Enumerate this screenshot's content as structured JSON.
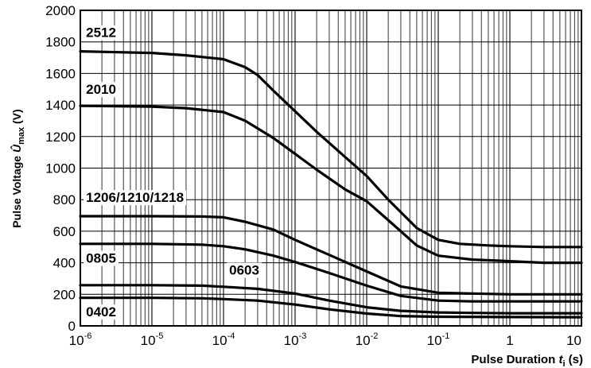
{
  "chart_data": {
    "type": "line",
    "x_scale": "log",
    "xlim": [
      1e-06,
      10
    ],
    "ylim": [
      0,
      2000
    ],
    "grid": true,
    "y_ticks": [
      0,
      200,
      400,
      600,
      800,
      1000,
      1200,
      1400,
      1600,
      1800,
      2000
    ],
    "x_tick_labels": [
      {
        "value": 1e-06,
        "base": "10",
        "exp": "-6"
      },
      {
        "value": 1e-05,
        "base": "10",
        "exp": "-5"
      },
      {
        "value": 0.0001,
        "base": "10",
        "exp": "-4"
      },
      {
        "value": 0.001,
        "base": "10",
        "exp": "-3"
      },
      {
        "value": 0.01,
        "base": "10",
        "exp": "-2"
      },
      {
        "value": 0.1,
        "base": "10",
        "exp": "-1"
      },
      {
        "value": 1,
        "base": "1",
        "exp": ""
      },
      {
        "value": 10,
        "base": "10",
        "exp": ""
      }
    ],
    "ylabel": {
      "main": "Pulse Voltage ",
      "symbol": "Û",
      "sub": "max",
      "unit": " (V)"
    },
    "xlabel": {
      "main": "Pulse Duration ",
      "symbol": "t",
      "sub": "i",
      "unit": " (s)"
    },
    "series": [
      {
        "name": "2512",
        "label_at": [
          1.2e-06,
          1830
        ],
        "points": [
          [
            1e-06,
            1740
          ],
          [
            1e-05,
            1730
          ],
          [
            3e-05,
            1715
          ],
          [
            0.0001,
            1690
          ],
          [
            0.0002,
            1640
          ],
          [
            0.0003,
            1590
          ],
          [
            0.0005,
            1490
          ],
          [
            0.001,
            1360
          ],
          [
            0.002,
            1230
          ],
          [
            0.005,
            1070
          ],
          [
            0.01,
            950
          ],
          [
            0.02,
            800
          ],
          [
            0.05,
            620
          ],
          [
            0.1,
            545
          ],
          [
            0.2,
            520
          ],
          [
            0.5,
            510
          ],
          [
            1,
            505
          ],
          [
            3,
            500
          ],
          [
            10,
            500
          ]
        ]
      },
      {
        "name": "2010",
        "label_at": [
          1.2e-06,
          1470
        ],
        "points": [
          [
            1e-06,
            1395
          ],
          [
            1e-05,
            1390
          ],
          [
            3e-05,
            1380
          ],
          [
            0.0001,
            1355
          ],
          [
            0.0002,
            1300
          ],
          [
            0.0005,
            1190
          ],
          [
            0.001,
            1090
          ],
          [
            0.002,
            990
          ],
          [
            0.005,
            865
          ],
          [
            0.01,
            790
          ],
          [
            0.02,
            670
          ],
          [
            0.05,
            510
          ],
          [
            0.1,
            445
          ],
          [
            0.3,
            420
          ],
          [
            1,
            410
          ],
          [
            3,
            400
          ],
          [
            10,
            400
          ]
        ]
      },
      {
        "name": "1206/1210/1218",
        "label_at": [
          1.2e-06,
          785
        ],
        "points": [
          [
            1e-06,
            695
          ],
          [
            1e-05,
            695
          ],
          [
            5e-05,
            693
          ],
          [
            0.0001,
            688
          ],
          [
            0.0002,
            660
          ],
          [
            0.0005,
            610
          ],
          [
            0.001,
            545
          ],
          [
            0.003,
            450
          ],
          [
            0.01,
            345
          ],
          [
            0.03,
            250
          ],
          [
            0.1,
            210
          ],
          [
            0.3,
            205
          ],
          [
            1,
            200
          ],
          [
            10,
            200
          ]
        ]
      },
      {
        "name": "0805",
        "label_at": [
          1.2e-06,
          400
        ],
        "points": [
          [
            1e-06,
            520
          ],
          [
            1e-05,
            520
          ],
          [
            5e-05,
            515
          ],
          [
            0.0001,
            505
          ],
          [
            0.0002,
            485
          ],
          [
            0.0005,
            445
          ],
          [
            0.001,
            405
          ],
          [
            0.003,
            335
          ],
          [
            0.01,
            255
          ],
          [
            0.03,
            190
          ],
          [
            0.1,
            160
          ],
          [
            0.3,
            155
          ],
          [
            1,
            155
          ],
          [
            10,
            155
          ]
        ]
      },
      {
        "name": "0603",
        "label_at": [
          0.00012,
          325
        ],
        "points": [
          [
            1e-06,
            258
          ],
          [
            1e-05,
            258
          ],
          [
            5e-05,
            255
          ],
          [
            0.0001,
            248
          ],
          [
            0.0003,
            235
          ],
          [
            0.001,
            205
          ],
          [
            0.003,
            160
          ],
          [
            0.01,
            118
          ],
          [
            0.03,
            95
          ],
          [
            0.1,
            85
          ],
          [
            0.3,
            82
          ],
          [
            1,
            80
          ],
          [
            10,
            80
          ]
        ]
      },
      {
        "name": "0402",
        "label_at": [
          1.2e-06,
          60
        ],
        "points": [
          [
            1e-06,
            178
          ],
          [
            1e-05,
            178
          ],
          [
            5e-05,
            175
          ],
          [
            0.0001,
            170
          ],
          [
            0.0003,
            160
          ],
          [
            0.001,
            135
          ],
          [
            0.003,
            105
          ],
          [
            0.01,
            78
          ],
          [
            0.03,
            62
          ],
          [
            0.1,
            58
          ],
          [
            1,
            56
          ],
          [
            10,
            55
          ]
        ]
      }
    ]
  }
}
